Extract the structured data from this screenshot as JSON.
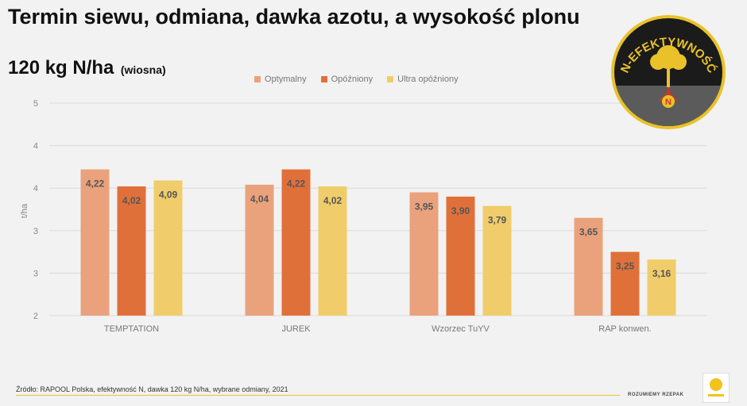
{
  "header": {
    "title": "Termin siewu, odmiana, dawka azotu, a wysokość plonu",
    "subtitle": "120 kg N/ha",
    "subtitle_note": "(wiosna)"
  },
  "badge": {
    "text": "N-EFEKTYWNOŚĆ",
    "letter": "N"
  },
  "colors": {
    "optymalny": "#eaa27c",
    "opozniony": "#e0703a",
    "ultra": "#f0cd6a",
    "background": "#f2f2f2"
  },
  "chart_data": {
    "type": "bar",
    "categories": [
      "TEMPTATION",
      "JUREK",
      "Wzorzec TuYV",
      "RAP konwen."
    ],
    "series": [
      {
        "name": "Optymalny",
        "values": [
          4.22,
          4.04,
          3.95,
          3.65
        ]
      },
      {
        "name": "Opóźniony",
        "values": [
          4.02,
          4.22,
          3.9,
          3.25
        ]
      },
      {
        "name": "Ultra opóźniony",
        "values": [
          4.09,
          4.02,
          3.79,
          3.16
        ]
      }
    ],
    "data_labels": [
      [
        "4,22",
        "4,04",
        "3,95",
        "3,65"
      ],
      [
        "4,02",
        "4,22",
        "3,90",
        "3,25"
      ],
      [
        "4,09",
        "4,02",
        "3,79",
        "3,16"
      ]
    ],
    "ylabel": "t/ha",
    "yticks": [
      "5",
      "4",
      "4",
      "3",
      "3",
      "2"
    ],
    "ylim": [
      2.5,
      5.0
    ],
    "grid": true,
    "legend_position": "top"
  },
  "footer": {
    "source": "Źródło: RAPOOL Polska, efektywność N, dawka 120 kg N/ha, wybrane odmiany, 2021",
    "tagline": "ROZUMIEMY RZEPAK"
  }
}
